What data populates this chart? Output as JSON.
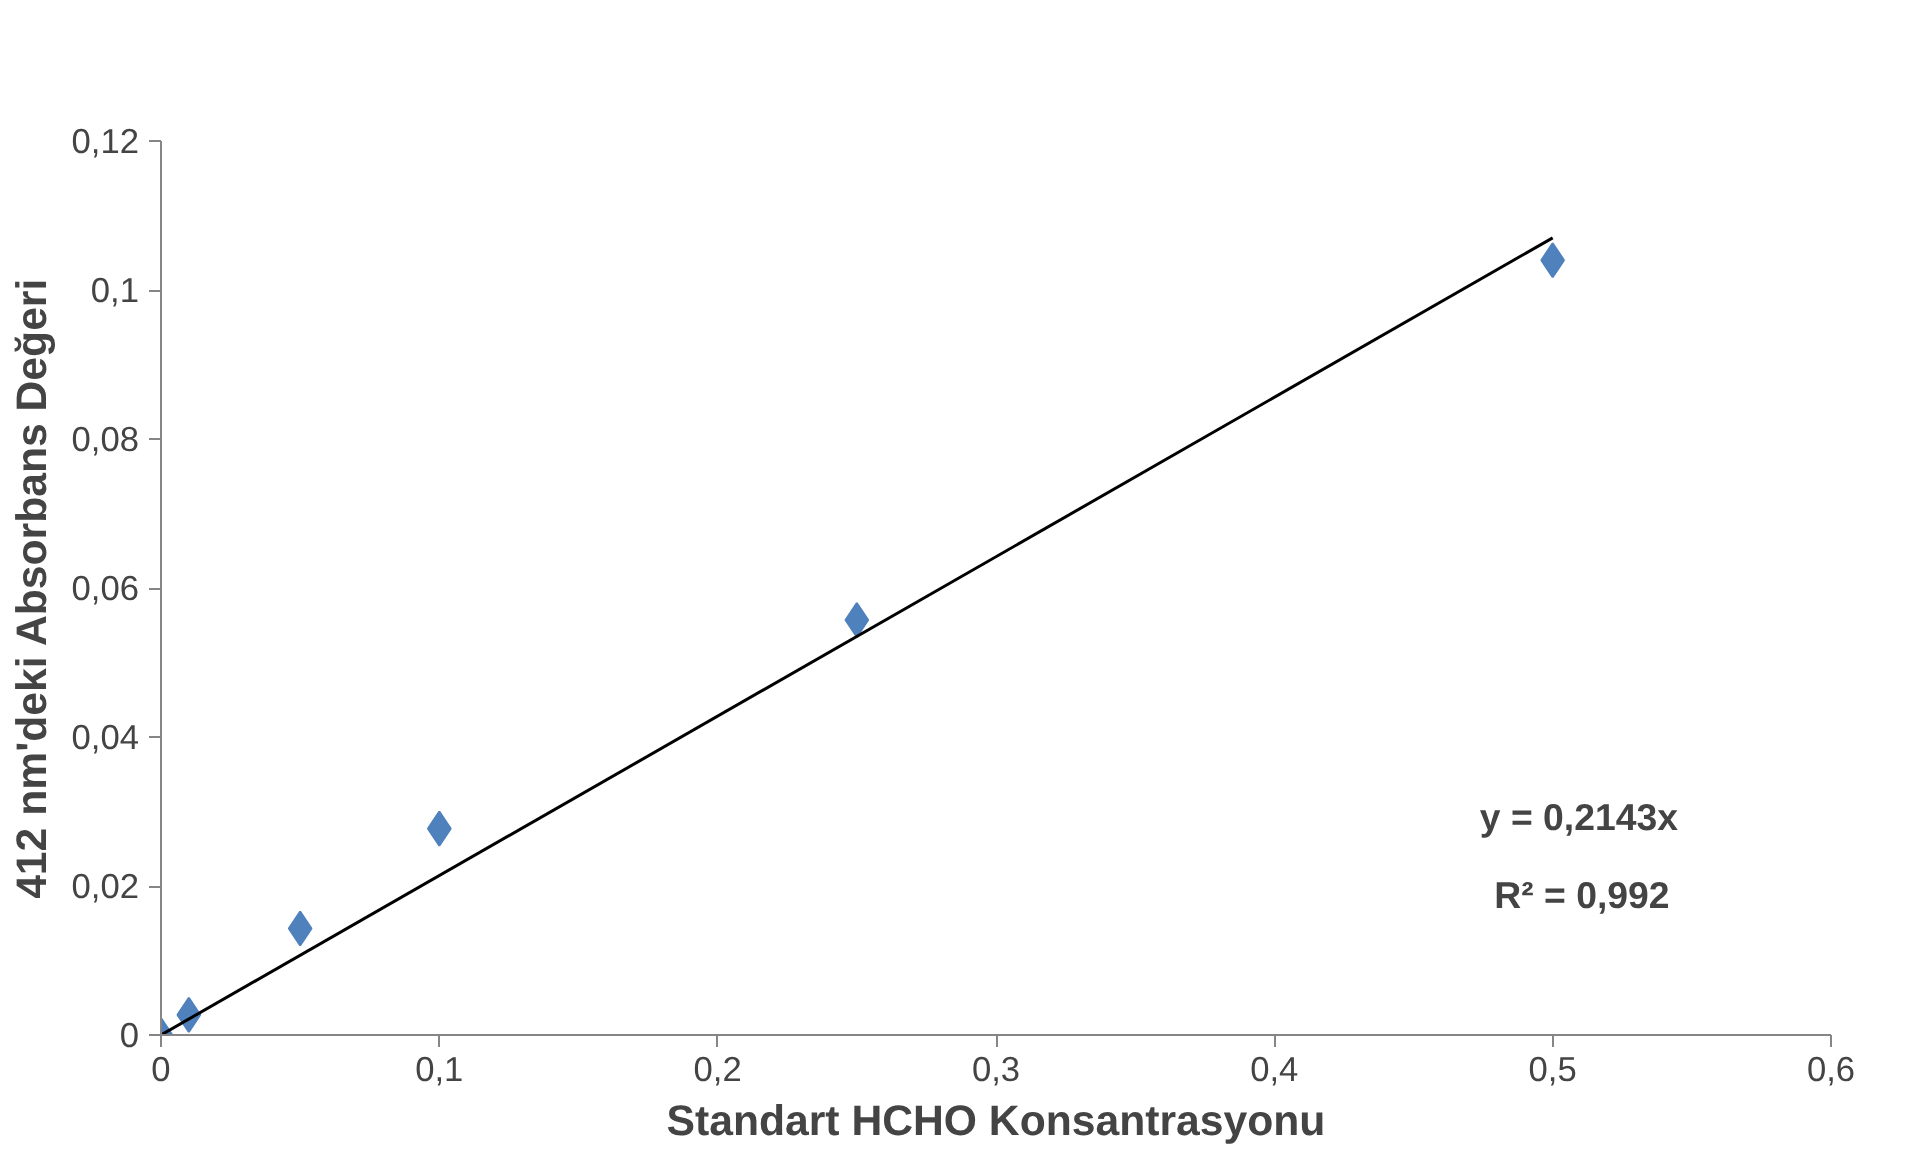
{
  "chart_data": {
    "type": "scatter",
    "xlabel": "Standart HCHO Konsantrasyonu",
    "ylabel": "412 nm'deki Absorbans Değeri",
    "xlim": [
      0,
      0.6
    ],
    "ylim": [
      0,
      0.12
    ],
    "xticks": [
      0,
      {
        "value": 0.1,
        "label": "0,1"
      },
      {
        "value": 0.2,
        "label": "0,2"
      },
      {
        "value": 0.3,
        "label": "0,3"
      },
      {
        "value": 0.4,
        "label": "0,4"
      },
      {
        "value": 0.5,
        "label": "0,5"
      },
      {
        "value": 0.6,
        "label": "0,6"
      }
    ],
    "yticks": [
      0,
      {
        "value": 0.02,
        "label": "0,02"
      },
      {
        "value": 0.04,
        "label": "0,04"
      },
      {
        "value": 0.06,
        "label": "0,06"
      },
      {
        "value": 0.08,
        "label": "0,08"
      },
      {
        "value": 0.1,
        "label": "0,1"
      },
      {
        "value": 0.12,
        "label": "0,12"
      }
    ],
    "grid": false,
    "series": [
      {
        "marker": "diamond",
        "color": "#4f81bd",
        "x": [
          0,
          0.01,
          0.05,
          0.1,
          0.25,
          0.5
        ],
        "values": [
          0,
          0.0027,
          0.0143,
          0.0277,
          0.0557,
          0.104
        ]
      },
      {
        "type": "line",
        "marker": "none",
        "color": "#000000",
        "x": [
          0,
          0.5
        ],
        "values": [
          0,
          0.107
        ]
      }
    ],
    "annotations": [
      "y = 0,2143x",
      "R² = 0,992"
    ]
  }
}
